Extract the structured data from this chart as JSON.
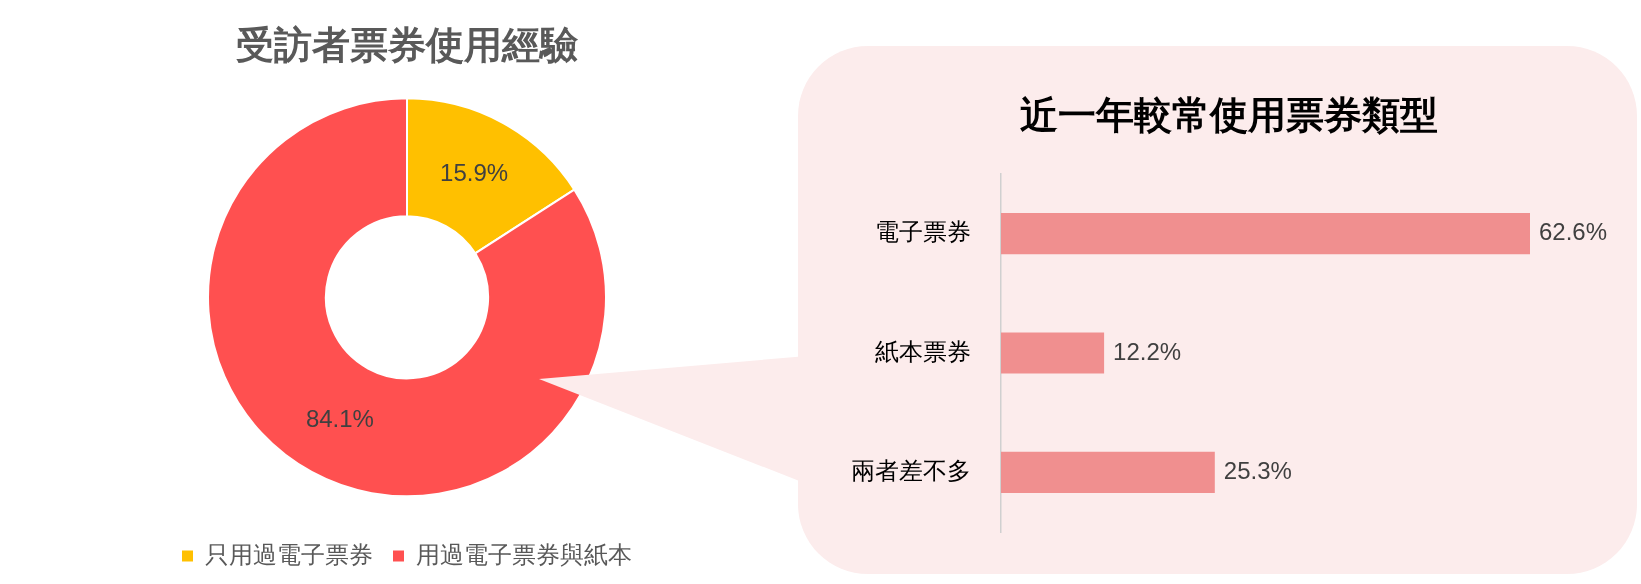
{
  "chart_data": [
    {
      "type": "donut",
      "title": "受訪者票券使用經驗",
      "categories": [
        "只用過電子票券",
        "用過電子票券與紙本"
      ],
      "values": [
        15.9,
        84.1
      ],
      "colors": [
        "#ffc000",
        "#ff5050"
      ],
      "value_labels": [
        "15.9%",
        "84.1%"
      ],
      "legend": "bottom"
    },
    {
      "type": "bar",
      "orientation": "horizontal",
      "title": "近一年較常使用票券類型",
      "categories": [
        "電子票券",
        "紙本票券",
        "兩者差不多"
      ],
      "values": [
        62.6,
        12.2,
        25.3
      ],
      "color": "#f08f8f",
      "value_labels": [
        "62.6%",
        "12.2%",
        "25.3%"
      ],
      "tick_labels": "y"
    }
  ]
}
